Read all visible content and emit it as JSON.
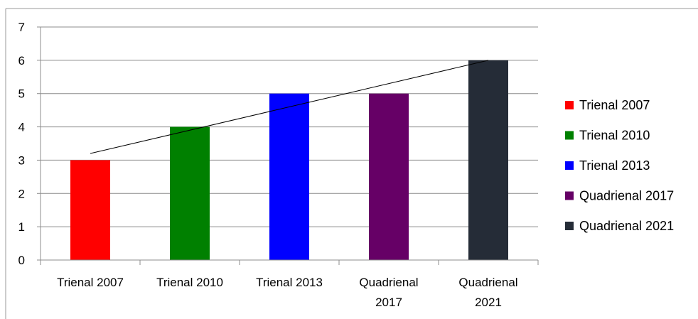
{
  "chart_data": {
    "type": "bar",
    "categories": [
      [
        "Trienal 2007"
      ],
      [
        "Trienal 2010"
      ],
      [
        "Trienal 2013"
      ],
      [
        "Quadrienal",
        "2017"
      ],
      [
        "Quadrienal",
        "2021"
      ]
    ],
    "values": [
      3,
      4,
      5,
      5,
      6
    ],
    "colors": [
      "#ff0000",
      "#008000",
      "#0000ff",
      "#660066",
      "#252c37"
    ],
    "ylim": [
      0,
      7
    ],
    "yticks": [
      0,
      1,
      2,
      3,
      4,
      5,
      6,
      7
    ],
    "grid": true,
    "trendline": {
      "type": "linear",
      "color": "#000000",
      "from_value": 3.2,
      "to_value": 6.0
    },
    "legend": {
      "position": "right",
      "entries": [
        {
          "label": "Trienal 2007",
          "color": "#ff0000"
        },
        {
          "label": "Trienal 2010",
          "color": "#008000"
        },
        {
          "label": "Trienal 2013",
          "color": "#0000ff"
        },
        {
          "label": "Quadrienal 2017",
          "color": "#660066"
        },
        {
          "label": "Quadrienal 2021",
          "color": "#252c37"
        }
      ]
    },
    "title": "",
    "xlabel": "",
    "ylabel": ""
  }
}
